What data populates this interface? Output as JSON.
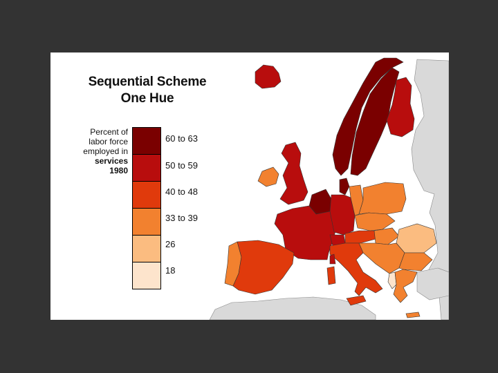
{
  "title": {
    "line1": "Sequential Scheme",
    "line2": "One Hue"
  },
  "legend": {
    "caption": [
      "Percent of",
      "labor force",
      "employed in"
    ],
    "caption_bold": [
      "services",
      "1980"
    ],
    "classes": [
      {
        "label": "60 to 63",
        "color": "#7a0000"
      },
      {
        "label": "50 to 59",
        "color": "#b80d0d"
      },
      {
        "label": "40 to 48",
        "color": "#e03a0c"
      },
      {
        "label": "33 to 39",
        "color": "#f2812f"
      },
      {
        "label": "26",
        "color": "#fbbc80"
      },
      {
        "label": "18",
        "color": "#fde4cc"
      }
    ]
  },
  "colors": {
    "background": "#333333",
    "frame": "#ffffff",
    "no_data": "#d9d9d9"
  }
}
